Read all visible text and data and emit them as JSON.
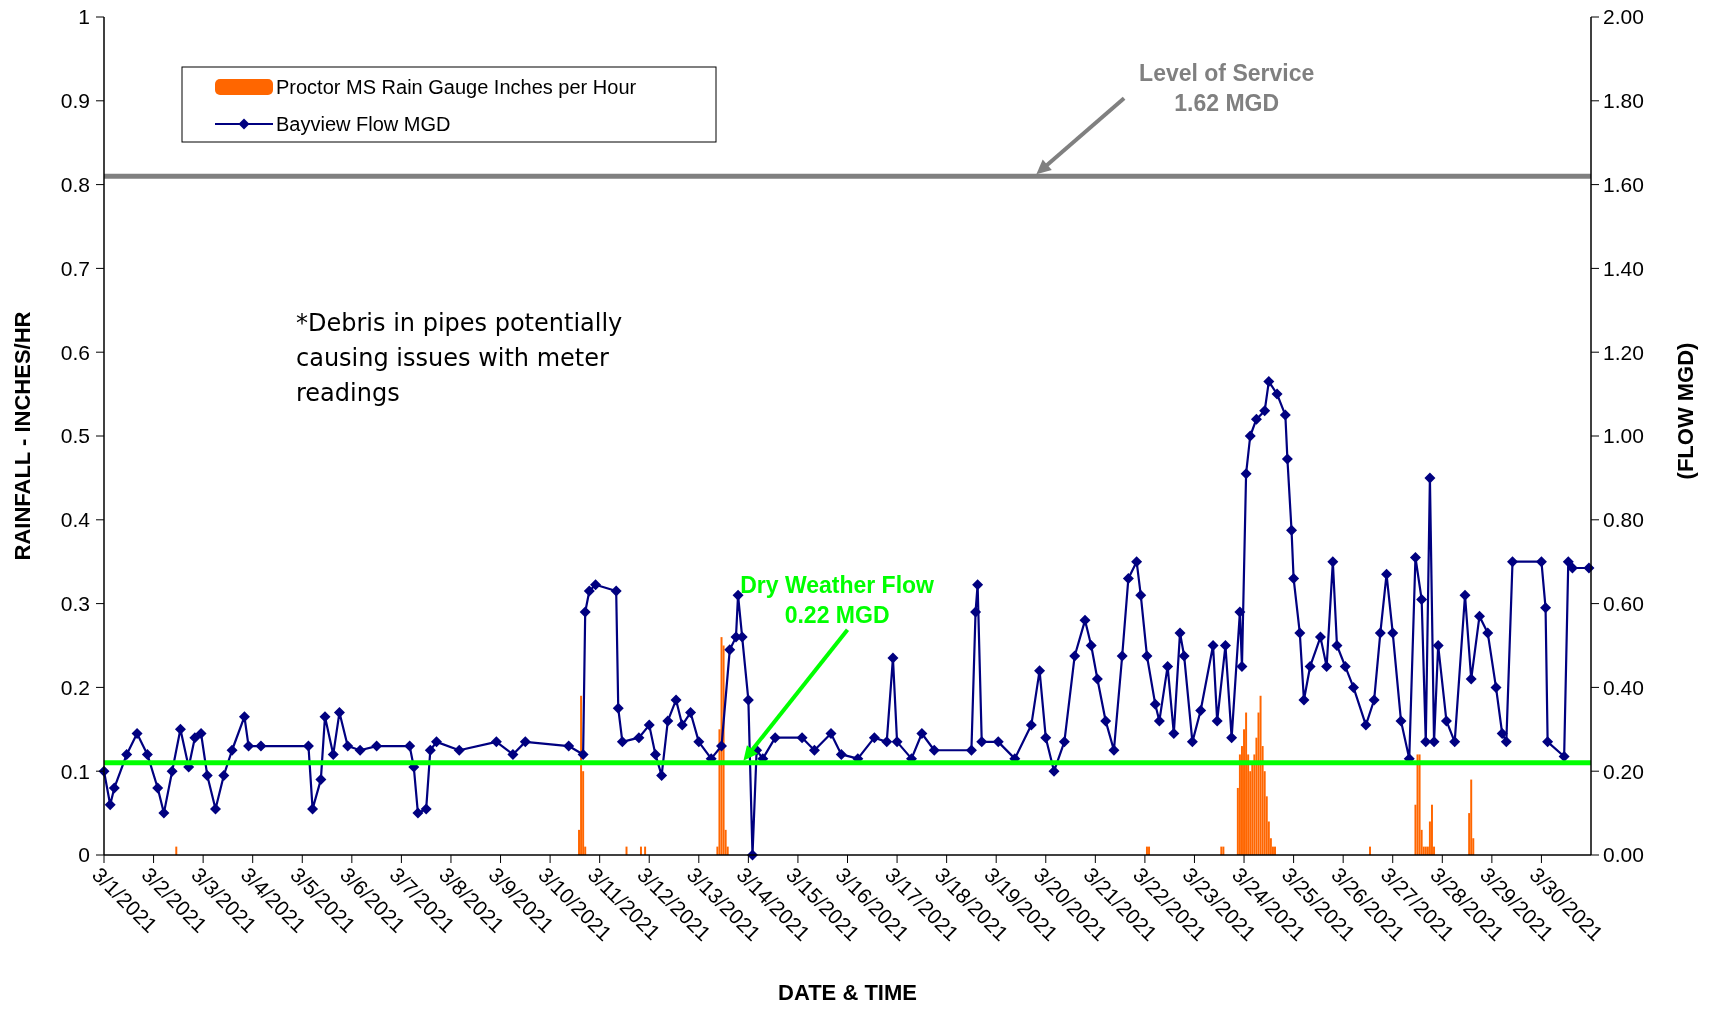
{
  "chart_data": {
    "type": "bar",
    "xlabel": "DATE & TIME",
    "ylabel": "RAINFALL - INCHES/HR",
    "y2label": "(FLOW MGD)",
    "xlim": [
      "2021-03-01",
      "2021-03-31"
    ],
    "xticks": [
      {
        "value": "2021-03-01",
        "label": "3/1/2021"
      },
      {
        "value": "2021-03-02",
        "label": "3/2/2021"
      },
      {
        "value": "2021-03-03",
        "label": "3/3/2021"
      },
      {
        "value": "2021-03-04",
        "label": "3/4/2021"
      },
      {
        "value": "2021-03-05",
        "label": "3/5/2021"
      },
      {
        "value": "2021-03-06",
        "label": "3/6/2021"
      },
      {
        "value": "2021-03-07",
        "label": "3/7/2021"
      },
      {
        "value": "2021-03-08",
        "label": "3/8/2021"
      },
      {
        "value": "2021-03-09",
        "label": "3/9/2021"
      },
      {
        "value": "2021-03-10",
        "label": "3/10/2021"
      },
      {
        "value": "2021-03-11",
        "label": "3/11/2021"
      },
      {
        "value": "2021-03-12",
        "label": "3/12/2021"
      },
      {
        "value": "2021-03-13",
        "label": "3/13/2021"
      },
      {
        "value": "2021-03-14",
        "label": "3/14/2021"
      },
      {
        "value": "2021-03-15",
        "label": "3/15/2021"
      },
      {
        "value": "2021-03-16",
        "label": "3/16/2021"
      },
      {
        "value": "2021-03-17",
        "label": "3/17/2021"
      },
      {
        "value": "2021-03-18",
        "label": "3/18/2021"
      },
      {
        "value": "2021-03-19",
        "label": "3/19/2021"
      },
      {
        "value": "2021-03-20",
        "label": "3/20/2021"
      },
      {
        "value": "2021-03-21",
        "label": "3/21/2021"
      },
      {
        "value": "2021-03-22",
        "label": "3/22/2021"
      },
      {
        "value": "2021-03-23",
        "label": "3/23/2021"
      },
      {
        "value": "2021-03-24",
        "label": "3/24/2021"
      },
      {
        "value": "2021-03-25",
        "label": "3/25/2021"
      },
      {
        "value": "2021-03-26",
        "label": "3/26/2021"
      },
      {
        "value": "2021-03-27",
        "label": "3/27/2021"
      },
      {
        "value": "2021-03-28",
        "label": "3/28/2021"
      },
      {
        "value": "2021-03-29",
        "label": "3/29/2021"
      },
      {
        "value": "2021-03-30",
        "label": "3/30/2021"
      }
    ],
    "ylim": [
      0,
      1
    ],
    "yticks": [
      0,
      0.1,
      0.2,
      0.3,
      0.4,
      0.5,
      0.6,
      0.7,
      0.8,
      0.9,
      1
    ],
    "y2lim": [
      0,
      2
    ],
    "y2ticks": [
      {
        "value": 0,
        "label": "0.00"
      },
      {
        "value": 0.2,
        "label": "0.20"
      },
      {
        "value": 0.4,
        "label": "0.40"
      },
      {
        "value": 0.6,
        "label": "0.60"
      },
      {
        "value": 0.8,
        "label": "0.80"
      },
      {
        "value": 1,
        "label": "1.00"
      },
      {
        "value": 1.2,
        "label": "1.20"
      },
      {
        "value": 1.4,
        "label": "1.40"
      },
      {
        "value": 1.6,
        "label": "1.60"
      },
      {
        "value": 1.8,
        "label": "1.80"
      },
      {
        "value": 2,
        "label": "2.00"
      }
    ],
    "legend": "top left",
    "grid": false,
    "series": [
      {
        "name": "Proctor MS Rain Gauge Inches per Hour",
        "color": "#ff6600",
        "x": [
          "2021-03-02T11:00",
          "2021-03-10T14:00",
          "2021-03-10T15:00",
          "2021-03-10T16:00",
          "2021-03-10T17:00",
          "2021-03-11T13:00",
          "2021-03-11T20:00",
          "2021-03-11T22:00",
          "2021-03-13T09:00",
          "2021-03-13T10:00",
          "2021-03-13T11:00",
          "2021-03-13T12:00",
          "2021-03-13T13:00",
          "2021-03-13T14:00",
          "2021-03-22T01:00",
          "2021-03-22T02:00",
          "2021-03-23T13:00",
          "2021-03-23T14:00",
          "2021-03-23T21:00",
          "2021-03-23T22:00",
          "2021-03-23T23:00",
          "2021-03-24T00:00",
          "2021-03-24T01:00",
          "2021-03-24T02:00",
          "2021-03-24T03:00",
          "2021-03-24T04:00",
          "2021-03-24T05:00",
          "2021-03-24T06:00",
          "2021-03-24T07:00",
          "2021-03-24T08:00",
          "2021-03-24T09:00",
          "2021-03-24T10:00",
          "2021-03-24T11:00",
          "2021-03-24T12:00",
          "2021-03-24T13:00",
          "2021-03-24T14:00",
          "2021-03-24T15:00",
          "2021-03-26T13:00",
          "2021-03-27T11:00",
          "2021-03-27T12:00",
          "2021-03-27T13:00",
          "2021-03-27T14:00",
          "2021-03-27T15:00",
          "2021-03-27T16:00",
          "2021-03-27T17:00",
          "2021-03-27T18:00",
          "2021-03-27T19:00",
          "2021-03-27T20:00",
          "2021-03-28T13:00",
          "2021-03-28T14:00",
          "2021-03-28T15:00"
        ],
        "values": [
          0.01,
          0.03,
          0.19,
          0.1,
          0.01,
          0.01,
          0.01,
          0.01,
          0.01,
          0.15,
          0.26,
          0.25,
          0.03,
          0.01,
          0.01,
          0.01,
          0.01,
          0.01,
          0.08,
          0.12,
          0.13,
          0.15,
          0.17,
          0.12,
          0.1,
          0.11,
          0.12,
          0.14,
          0.17,
          0.19,
          0.13,
          0.1,
          0.07,
          0.04,
          0.02,
          0.01,
          0.01,
          0.01,
          0.06,
          0.12,
          0.12,
          0.03,
          0.01,
          0.01,
          0.01,
          0.04,
          0.06,
          0.01,
          0.05,
          0.09,
          0.02
        ]
      },
      {
        "name": "Bayview Flow MGD",
        "type": "line",
        "axis": "y2",
        "color": "#000080",
        "marker": "diamond",
        "line_style": "solid",
        "x": [
          "2021-03-01T00:00",
          "2021-03-01T03:00",
          "2021-03-01T05:00",
          "2021-03-01T11:00",
          "2021-03-01T16:00",
          "2021-03-01T21:00",
          "2021-03-02T02:00",
          "2021-03-02T05:00",
          "2021-03-02T09:00",
          "2021-03-02T13:00",
          "2021-03-02T17:00",
          "2021-03-02T20:00",
          "2021-03-02T23:00",
          "2021-03-03T02:00",
          "2021-03-03T06:00",
          "2021-03-03T10:00",
          "2021-03-03T14:00",
          "2021-03-03T20:00",
          "2021-03-03T22:00",
          "2021-03-04T04:00",
          "2021-03-05T03:00",
          "2021-03-05T05:00",
          "2021-03-05T09:00",
          "2021-03-05T11:00",
          "2021-03-05T15:00",
          "2021-03-05T18:00",
          "2021-03-05T22:00",
          "2021-03-06T04:00",
          "2021-03-06T12:00",
          "2021-03-07T04:00",
          "2021-03-07T06:00",
          "2021-03-07T08:00",
          "2021-03-07T12:00",
          "2021-03-07T14:00",
          "2021-03-07T17:00",
          "2021-03-08T04:00",
          "2021-03-08T22:00",
          "2021-03-09T06:00",
          "2021-03-09T12:00",
          "2021-03-10T09:00",
          "2021-03-10T16:00",
          "2021-03-10T17:00",
          "2021-03-10T19:00",
          "2021-03-10T22:00",
          "2021-03-11T08:00",
          "2021-03-11T09:00",
          "2021-03-11T11:00",
          "2021-03-11T19:00",
          "2021-03-12T00:00",
          "2021-03-12T03:00",
          "2021-03-12T06:00",
          "2021-03-12T09:00",
          "2021-03-12T13:00",
          "2021-03-12T16:00",
          "2021-03-12T20:00",
          "2021-03-13T00:00",
          "2021-03-13T06:00",
          "2021-03-13T11:00",
          "2021-03-13T15:00",
          "2021-03-13T18:00",
          "2021-03-13T19:00",
          "2021-03-13T21:00",
          "2021-03-14T00:00",
          "2021-03-14T02:00",
          "2021-03-14T04:00",
          "2021-03-14T07:00",
          "2021-03-14T13:00",
          "2021-03-15T02:00",
          "2021-03-15T08:00",
          "2021-03-15T16:00",
          "2021-03-15T21:00",
          "2021-03-16T05:00",
          "2021-03-16T13:00",
          "2021-03-16T19:00",
          "2021-03-16T22:00",
          "2021-03-17T00:00",
          "2021-03-17T07:00",
          "2021-03-17T12:00",
          "2021-03-17T18:00",
          "2021-03-18T12:00",
          "2021-03-18T14:00",
          "2021-03-18T15:00",
          "2021-03-18T17:00",
          "2021-03-19T01:00",
          "2021-03-19T09:00",
          "2021-03-19T17:00",
          "2021-03-19T21:00",
          "2021-03-20T00:00",
          "2021-03-20T04:00",
          "2021-03-20T09:00",
          "2021-03-20T14:00",
          "2021-03-20T19:00",
          "2021-03-20T22:00",
          "2021-03-21T01:00",
          "2021-03-21T05:00",
          "2021-03-21T09:00",
          "2021-03-21T13:00",
          "2021-03-21T16:00",
          "2021-03-21T20:00",
          "2021-03-21T22:00",
          "2021-03-22T01:00",
          "2021-03-22T05:00",
          "2021-03-22T07:00",
          "2021-03-22T11:00",
          "2021-03-22T14:00",
          "2021-03-22T17:00",
          "2021-03-22T19:00",
          "2021-03-22T23:00",
          "2021-03-23T03:00",
          "2021-03-23T09:00",
          "2021-03-23T11:00",
          "2021-03-23T15:00",
          "2021-03-23T18:00",
          "2021-03-23T22:00",
          "2021-03-23T23:00",
          "2021-03-24T01:00",
          "2021-03-24T03:00",
          "2021-03-24T06:00",
          "2021-03-24T10:00",
          "2021-03-24T12:00",
          "2021-03-24T16:00",
          "2021-03-24T20:00",
          "2021-03-24T21:00",
          "2021-03-24T23:00",
          "2021-03-25T00:00",
          "2021-03-25T03:00",
          "2021-03-25T05:00",
          "2021-03-25T08:00",
          "2021-03-25T13:00",
          "2021-03-25T16:00",
          "2021-03-25T19:00",
          "2021-03-25T21:00",
          "2021-03-26T01:00",
          "2021-03-26T05:00",
          "2021-03-26T11:00",
          "2021-03-26T15:00",
          "2021-03-26T18:00",
          "2021-03-26T21:00",
          "2021-03-27T00:00",
          "2021-03-27T04:00",
          "2021-03-27T08:00",
          "2021-03-27T11:00",
          "2021-03-27T14:00",
          "2021-03-27T16:00",
          "2021-03-27T18:00",
          "2021-03-27T20:00",
          "2021-03-27T22:00",
          "2021-03-28T02:00",
          "2021-03-28T06:00",
          "2021-03-28T11:00",
          "2021-03-28T14:00",
          "2021-03-28T18:00",
          "2021-03-28T22:00",
          "2021-03-29T02:00",
          "2021-03-29T05:00",
          "2021-03-29T07:00",
          "2021-03-29T10:00",
          "2021-03-30T00:00",
          "2021-03-30T02:00",
          "2021-03-30T03:00",
          "2021-03-30T11:00",
          "2021-03-30T13:00",
          "2021-03-30T15:00",
          "2021-03-30T23:00"
        ],
        "values": [
          0.2,
          0.12,
          0.16,
          0.24,
          0.29,
          0.24,
          0.16,
          0.1,
          0.2,
          0.3,
          0.21,
          0.28,
          0.29,
          0.19,
          0.11,
          0.19,
          0.25,
          0.33,
          0.26,
          0.26,
          0.26,
          0.11,
          0.18,
          0.33,
          0.24,
          0.34,
          0.26,
          0.25,
          0.26,
          0.26,
          0.21,
          0.1,
          0.11,
          0.25,
          0.27,
          0.25,
          0.27,
          0.24,
          0.27,
          0.26,
          0.24,
          0.58,
          0.63,
          0.645,
          0.63,
          0.35,
          0.27,
          0.28,
          0.31,
          0.24,
          0.19,
          0.32,
          0.37,
          0.31,
          0.34,
          0.27,
          0.23,
          0.26,
          0.49,
          0.52,
          0.62,
          0.52,
          0.37,
          0,
          0.25,
          0.23,
          0.28,
          0.28,
          0.25,
          0.29,
          0.24,
          0.23,
          0.28,
          0.27,
          0.47,
          0.27,
          0.23,
          0.29,
          0.25,
          0.25,
          0.58,
          0.645,
          0.27,
          0.27,
          0.23,
          0.31,
          0.44,
          0.28,
          0.2,
          0.27,
          0.475,
          0.56,
          0.5,
          0.42,
          0.32,
          0.25,
          0.475,
          0.66,
          0.7,
          0.62,
          0.475,
          0.36,
          0.32,
          0.45,
          0.29,
          0.53,
          0.475,
          0.27,
          0.345,
          0.5,
          0.32,
          0.5,
          0.28,
          0.58,
          0.45,
          0.91,
          1,
          1.04,
          1.06,
          1.13,
          1.1,
          1.05,
          0.945,
          0.775,
          0.66,
          0.53,
          0.37,
          0.45,
          0.52,
          0.45,
          0.7,
          0.5,
          0.45,
          0.4,
          0.31,
          0.37,
          0.53,
          0.67,
          0.53,
          0.32,
          0.23,
          0.71,
          0.61,
          0.27,
          0.9,
          0.27,
          0.5,
          0.32,
          0.27,
          0.62,
          0.42,
          0.57,
          0.53,
          0.4,
          0.29,
          0.27,
          0.7,
          0.7,
          0.59,
          0.27,
          0.235,
          0.7,
          0.685,
          0.685
        ]
      }
    ],
    "ref_lines": [
      {
        "axis": "y2",
        "value": 1.62,
        "label": "Level of Service\n1.62 MGD",
        "color": "#808080",
        "line_style": "solid"
      },
      {
        "axis": "y2",
        "value": 0.22,
        "label": "Dry Weather Flow\n0.22 MGD",
        "color": "#00ff00",
        "line_style": "solid"
      }
    ],
    "annotations": [
      "*Debris in pipes potentially\ncausing issues with meter\nreadings"
    ]
  }
}
